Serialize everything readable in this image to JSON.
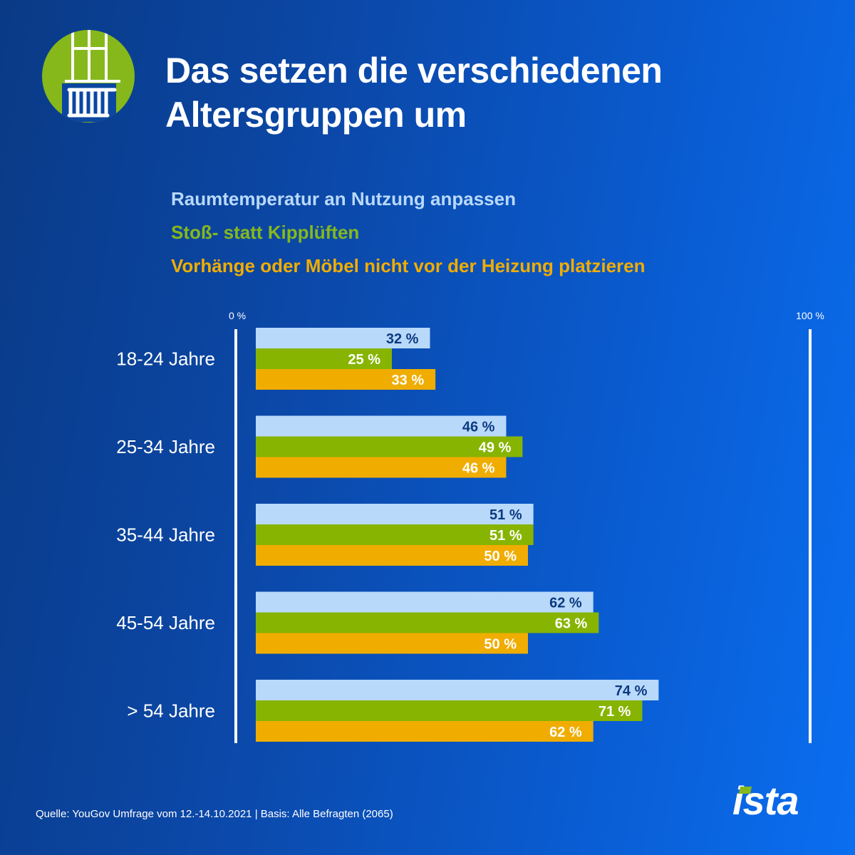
{
  "header": {
    "title_line1": "Das setzen die verschiedenen",
    "title_line2": "Altersgruppen um",
    "icon": "window-radiator-icon"
  },
  "colors": {
    "series1": "#b9d9fb",
    "series2": "#86b400",
    "series3": "#f0ad00",
    "label_dark": "#0b3a80",
    "label_light": "#ffffff",
    "brand_green": "#86b81c"
  },
  "chart_data": {
    "type": "bar",
    "orientation": "horizontal",
    "title": "Das setzen die verschiedenen Altersgruppen um",
    "categories": [
      "18-24 Jahre",
      "25-34 Jahre",
      "35-44 Jahre",
      "45-54 Jahre",
      "> 54 Jahre"
    ],
    "series": [
      {
        "name": "Raumtemperatur an Nutzung anpassen",
        "values": [
          32,
          46,
          51,
          62,
          74
        ]
      },
      {
        "name": "Stoß- statt Kipplüften",
        "values": [
          25,
          49,
          51,
          63,
          71
        ]
      },
      {
        "name": "Vorhänge oder Möbel nicht vor der Heizung platzieren",
        "values": [
          33,
          46,
          50,
          50,
          62
        ]
      }
    ],
    "axis_labels": {
      "min": "0 %",
      "max": "100 %"
    },
    "xlim": [
      0,
      100
    ],
    "value_suffix": " %",
    "legend_position": "top",
    "grid": false
  },
  "footer": {
    "source": "Quelle: YouGov Umfrage vom 12.-14.10.2021 | Basis: Alle Befragten (2065)",
    "brand": "ista"
  }
}
